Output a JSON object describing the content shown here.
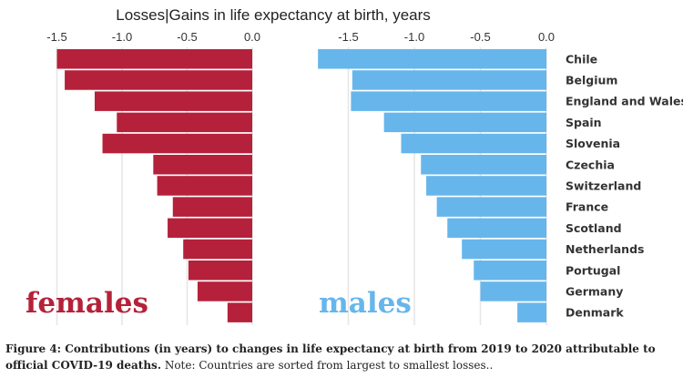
{
  "chart_data": {
    "type": "bar",
    "title": "Losses|Gains in life expectancy at birth, years",
    "orientation": "horizontal",
    "xlim": [
      -1.6,
      0.0
    ],
    "xticks": [
      -1.5,
      -1.0,
      -0.5,
      0.0
    ],
    "xtick_labels": [
      "-1.5",
      "-1.0",
      "-0.5",
      "0.0"
    ],
    "grid": true,
    "categories": [
      "Chile",
      "Belgium",
      "England and Wales",
      "Spain",
      "Slovenia",
      "Czechia",
      "Switzerland",
      "France",
      "Scotland",
      "Netherlands",
      "Portugal",
      "Germany",
      "Denmark"
    ],
    "series": [
      {
        "name": "females",
        "color": "#B5213A",
        "values": [
          -1.5,
          -1.44,
          -1.21,
          -1.04,
          -1.15,
          -0.76,
          -0.73,
          -0.61,
          -0.65,
          -0.53,
          -0.49,
          -0.42,
          -0.19
        ]
      },
      {
        "name": "males",
        "color": "#66B6EC",
        "values": [
          -1.73,
          -1.47,
          -1.48,
          -1.23,
          -1.1,
          -0.95,
          -0.91,
          -0.83,
          -0.75,
          -0.64,
          -0.55,
          -0.5,
          -0.22
        ]
      }
    ]
  },
  "caption": {
    "bold": "Figure 4: Contributions (in years) to changes in life expectancy at birth from 2019 to 2020 attributable to official COVID-19 deaths.",
    "normal": " Note: Countries are sorted from largest to smallest losses.."
  }
}
